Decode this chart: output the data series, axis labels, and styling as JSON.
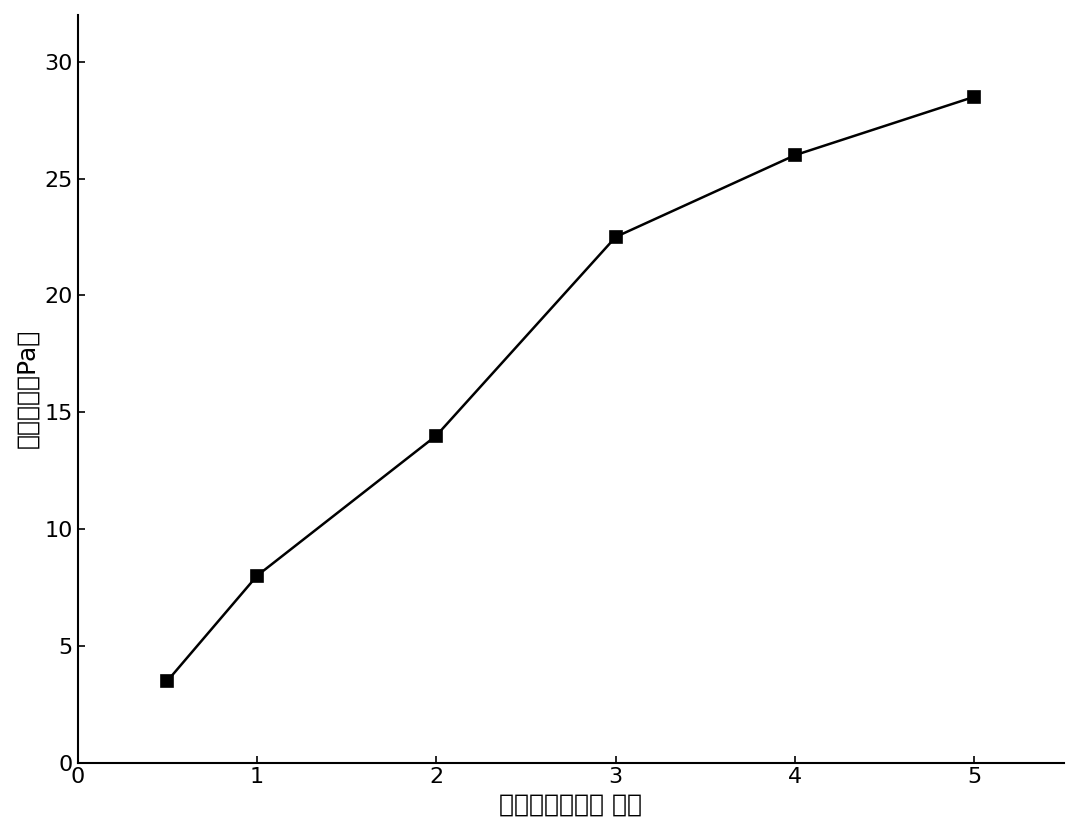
{
  "x": [
    0.5,
    1,
    2,
    3,
    4,
    5
  ],
  "y": [
    3.5,
    8.0,
    14.0,
    22.5,
    26.0,
    28.5
  ],
  "xlim": [
    0,
    5.5
  ],
  "ylim": [
    0,
    32
  ],
  "xticks": [
    0,
    1,
    2,
    3,
    4,
    5
  ],
  "yticks": [
    0,
    5,
    10,
    15,
    20,
    25,
    30
  ],
  "xlabel": "交联剂用量（份 数）",
  "ylabel": "储模能量（Pa）",
  "line_color": "#000000",
  "marker": "s",
  "marker_size": 8,
  "marker_facecolor": "#000000",
  "line_width": 1.8,
  "background_color": "#ffffff",
  "tick_fontsize": 16,
  "label_fontsize": 18
}
